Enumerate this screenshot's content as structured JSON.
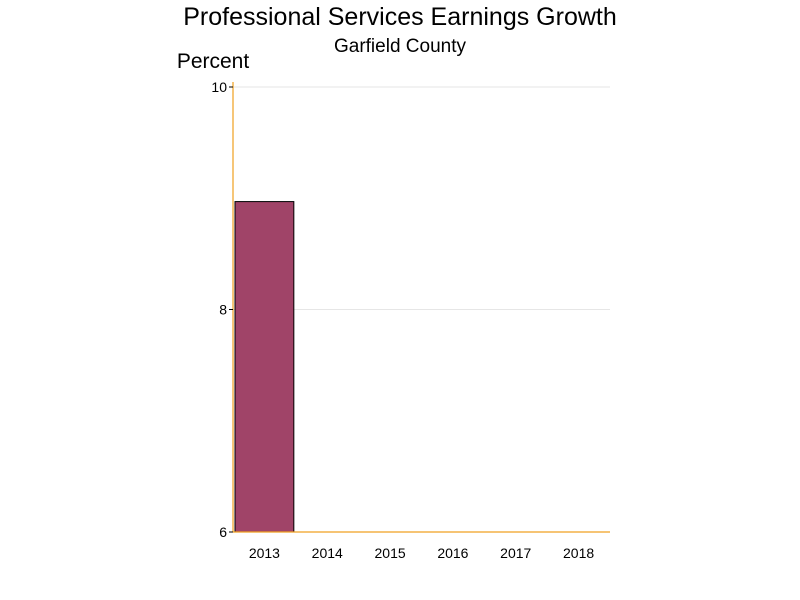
{
  "chart_data": {
    "type": "bar",
    "title": "Professional Services Earnings Growth",
    "subtitle": "Garfield County",
    "ylabel": "Percent",
    "xlabel": "",
    "categories": [
      "2013",
      "2014",
      "2015",
      "2016",
      "2017",
      "2018"
    ],
    "values": [
      8.97,
      null,
      null,
      null,
      null,
      null
    ],
    "ylim": [
      6,
      10
    ],
    "yticks": [
      6,
      8,
      10
    ],
    "grid": true,
    "legend": "none",
    "colors": {
      "bar_fill": "#a04468",
      "bar_stroke": "#000000",
      "axis": "#f0a020",
      "grid": "#e6e6e6"
    }
  }
}
